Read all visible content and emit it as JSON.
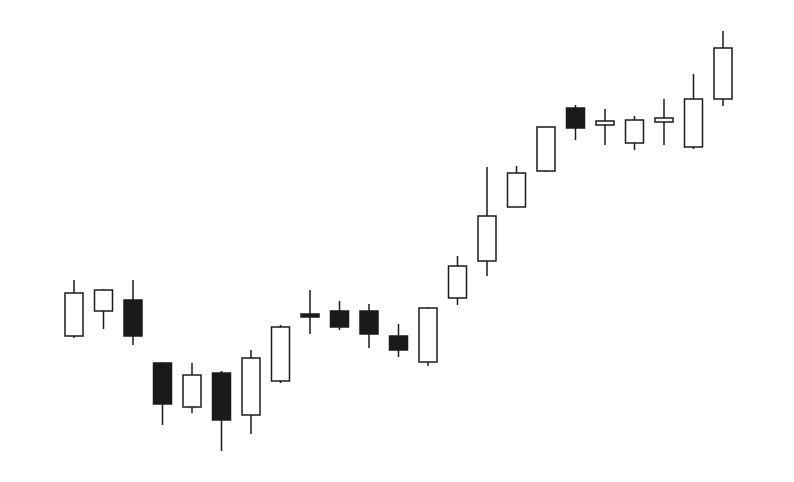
{
  "chart_data": {
    "type": "candlestick",
    "title": "",
    "xlabel": "",
    "ylabel": "",
    "ylim": [
      0,
      482
    ],
    "grid": false,
    "axes_visible": false,
    "colors": {
      "up_fill": "#ffffff",
      "down_fill": "#1a1a1a",
      "stroke": "#1a1a1a"
    },
    "candles": [
      {
        "open": 146,
        "high": 202,
        "low": 144,
        "close": 189
      },
      {
        "open": 171,
        "high": 193,
        "low": 153,
        "close": 192
      },
      {
        "open": 182,
        "high": 202,
        "low": 137,
        "close": 146
      },
      {
        "open": 119,
        "high": 120,
        "low": 57,
        "close": 78
      },
      {
        "open": 75,
        "high": 119,
        "low": 69,
        "close": 107
      },
      {
        "open": 109,
        "high": 111,
        "low": 31,
        "close": 62
      },
      {
        "open": 67,
        "high": 132,
        "low": 48,
        "close": 124
      },
      {
        "open": 101,
        "high": 157,
        "low": 99,
        "close": 155
      },
      {
        "open": 168,
        "high": 192,
        "low": 148,
        "close": 165
      },
      {
        "open": 171,
        "high": 181,
        "low": 152,
        "close": 155
      },
      {
        "open": 171,
        "high": 178,
        "low": 134,
        "close": 148
      },
      {
        "open": 146,
        "high": 158,
        "low": 125,
        "close": 132
      },
      {
        "open": 120,
        "high": 175,
        "low": 116,
        "close": 174
      },
      {
        "open": 184,
        "high": 226,
        "low": 177,
        "close": 216
      },
      {
        "open": 221,
        "high": 315,
        "low": 206,
        "close": 266
      },
      {
        "open": 275,
        "high": 316,
        "low": 275,
        "close": 309
      },
      {
        "open": 311,
        "high": 355,
        "low": 310,
        "close": 355
      },
      {
        "open": 374,
        "high": 377,
        "low": 342,
        "close": 354
      },
      {
        "open": 357,
        "high": 373,
        "low": 337,
        "close": 361
      },
      {
        "open": 339,
        "high": 366,
        "low": 332,
        "close": 362
      },
      {
        "open": 360,
        "high": 383,
        "low": 337,
        "close": 364
      },
      {
        "open": 335,
        "high": 408,
        "low": 333,
        "close": 383
      },
      {
        "open": 383,
        "high": 451,
        "low": 376,
        "close": 434
      }
    ]
  }
}
